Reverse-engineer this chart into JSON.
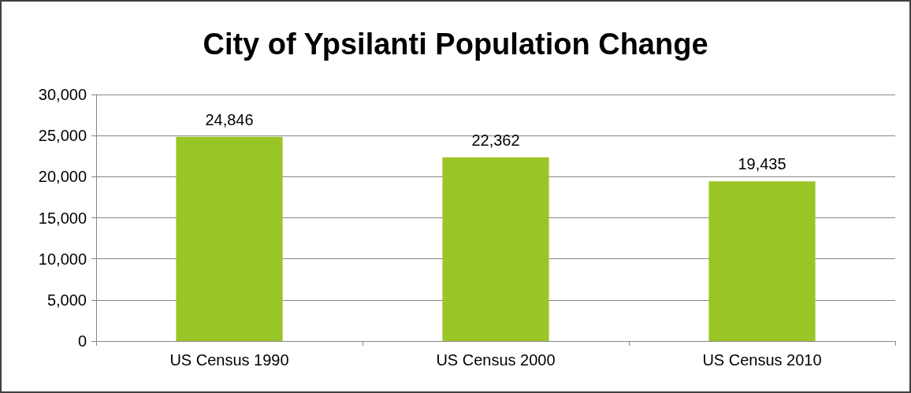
{
  "chart_data": {
    "type": "bar",
    "title": "City of Ypsilanti Population Change",
    "categories": [
      "US Census 1990",
      "US Census 2000",
      "US Census 2010"
    ],
    "values": [
      24846,
      22362,
      19435
    ],
    "color": "#9ac526",
    "ylim": [
      0,
      30000
    ],
    "yticks": [
      {
        "value": 0,
        "label": "0"
      },
      {
        "value": 5000,
        "label": "5,000"
      },
      {
        "value": 10000,
        "label": "10,000"
      },
      {
        "value": 15000,
        "label": "15,000"
      },
      {
        "value": 20000,
        "label": "20,000"
      },
      {
        "value": 25000,
        "label": "25,000"
      },
      {
        "value": 30000,
        "label": "30,000"
      }
    ],
    "value_labels": [
      "24,846",
      "22,362",
      "19,435"
    ],
    "grid": "y"
  }
}
